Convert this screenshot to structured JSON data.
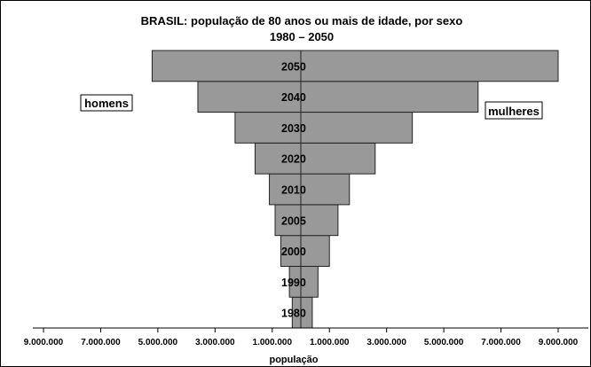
{
  "chart_data": {
    "type": "bar",
    "title": "BRASIL: população de 80 anos ou mais de idade, por sexo",
    "subtitle": "1980 – 2050",
    "xlabel": "população",
    "ylabel": "",
    "categories": [
      "1980",
      "1990",
      "2000",
      "2005",
      "2010",
      "2020",
      "2030",
      "2040",
      "2050"
    ],
    "series": [
      {
        "name": "homens",
        "values": [
          300000,
          400000,
          700000,
          900000,
          1100000,
          1600000,
          2300000,
          3600000,
          5200000
        ]
      },
      {
        "name": "mulheres",
        "values": [
          400000,
          600000,
          1000000,
          1300000,
          1700000,
          2600000,
          3900000,
          6200000,
          9000000
        ]
      }
    ],
    "xlim": [
      -9400000,
      9900000
    ],
    "xticks": [
      {
        "value": -9000000,
        "label": "9.000.000"
      },
      {
        "value": -7000000,
        "label": "7.000.000"
      },
      {
        "value": -5000000,
        "label": "5.000.000"
      },
      {
        "value": -3000000,
        "label": "3.000.000"
      },
      {
        "value": -1000000,
        "label": "1.000.000"
      },
      {
        "value": 1000000,
        "label": "1.000.000"
      },
      {
        "value": 3000000,
        "label": "3.000.000"
      },
      {
        "value": 5000000,
        "label": "5.000.000"
      },
      {
        "value": 7000000,
        "label": "7.000.000"
      },
      {
        "value": 9000000,
        "label": "9.000.000"
      }
    ],
    "legend": {
      "left": "homens",
      "right": "mulheres"
    },
    "colors": {
      "bar": "#999999",
      "outline": "#222222"
    },
    "grid": false
  }
}
